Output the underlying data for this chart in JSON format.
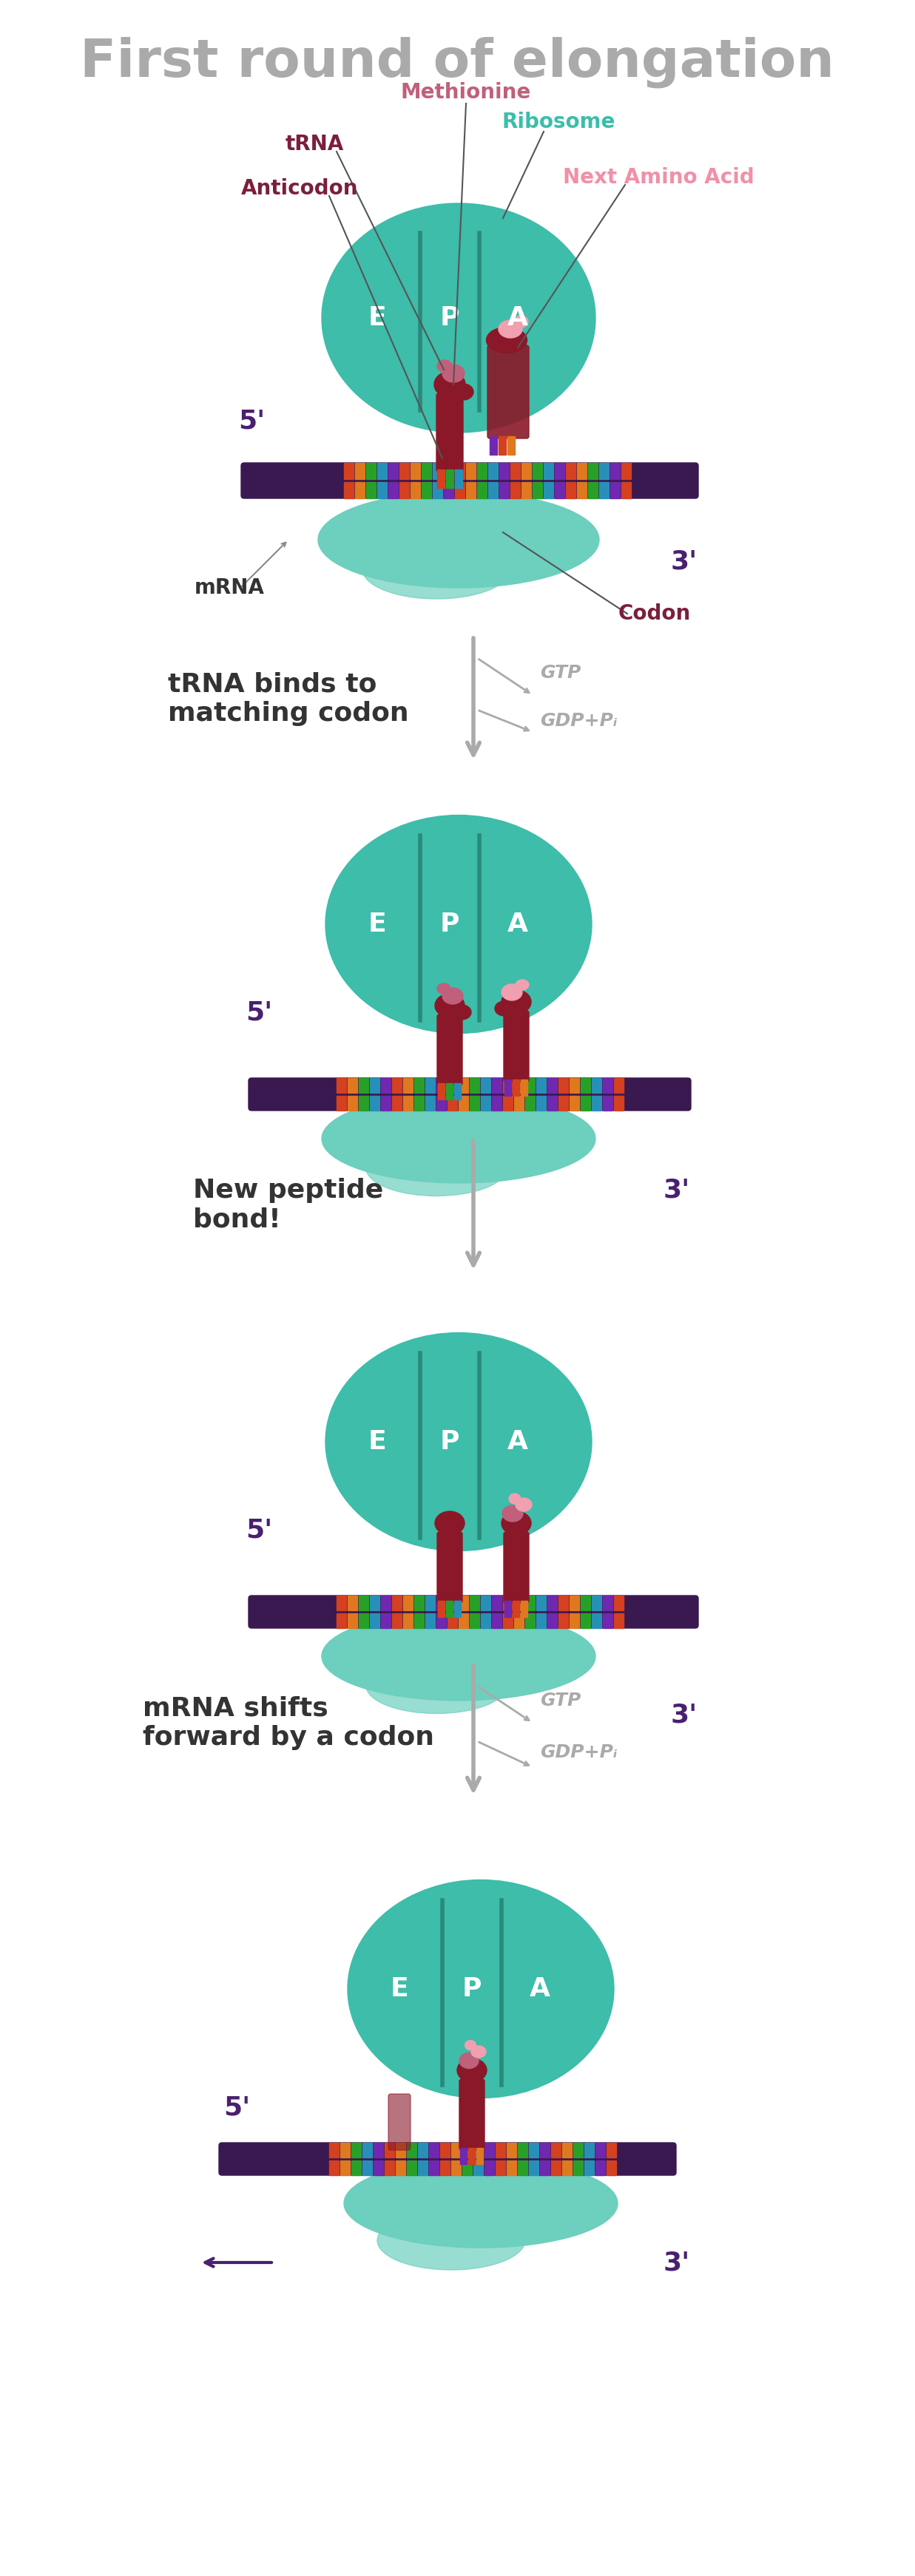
{
  "title": "First round of elongation",
  "title_color": "#aaaaaa",
  "title_fontsize": 52,
  "bg_color": "#ffffff",
  "teal_dark": "#3dbdaa",
  "teal_light": "#6dcfbe",
  "teal_shadow": "#2a9e8f",
  "purple_dark": "#4a2070",
  "purple_mid": "#7b4fa0",
  "purple_light": "#9b6fc0",
  "mRNA_color": "#3a1850",
  "codon_label_color": "#7b1f3a",
  "methionine_color": "#c0607a",
  "next_aa_color": "#f0a0b0",
  "trna_body_color": "#a01830",
  "trna_anticodon_color": "#c83050",
  "gray_arrow": "#aaaaaa",
  "label_dark": "#333333",
  "label_tRNA": "#7b1f3a",
  "label_anticodon": "#7b1f3a",
  "label_methionine": "#c0607a",
  "label_ribosome": "#3dbdaa",
  "label_nextaa": "#f090a8",
  "label_mRNA": "#333333",
  "label_5prime": "#4a2070",
  "label_3prime": "#4a2070",
  "label_codon": "#7b1f3a",
  "label_gtp": "#aaaaaa",
  "label_gdp": "#aaaaaa",
  "step1_label": "tRNA binds to\nmatching codon",
  "step2_label": "New peptide\nbond!",
  "step3_label": "mRNA shifts\nforward by a codon",
  "epa_label_color": "#ffffff",
  "epa_fontsize": 28
}
